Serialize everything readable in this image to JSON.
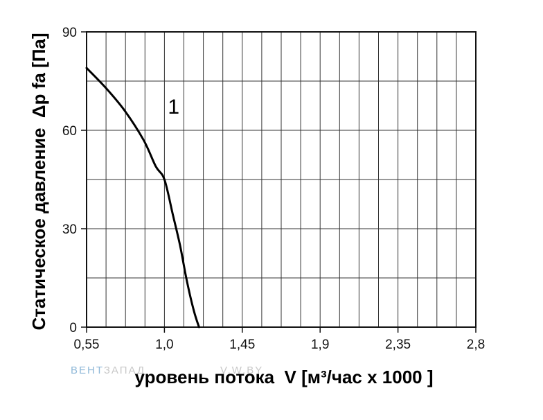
{
  "chart_data": {
    "type": "line",
    "title": "",
    "xlabel": "уровень потока  V [м³/час x 1000 ]",
    "ylabel": "Статическое давление  Δp fa [Па]",
    "xlim": [
      0.55,
      2.8
    ],
    "ylim": [
      0,
      90
    ],
    "x_ticks": [
      0.55,
      1.0,
      1.45,
      1.9,
      2.35,
      2.8
    ],
    "x_tick_labels": [
      "0,55",
      "1,0",
      "1,45",
      "1,9",
      "2,35",
      "2,8"
    ],
    "y_ticks": [
      0,
      30,
      60,
      90
    ],
    "y_tick_labels": [
      "0",
      "30",
      "60",
      "90"
    ],
    "x_minor_step": 0.1125,
    "y_minor_step": 15,
    "grid": true,
    "series": [
      {
        "name": "1",
        "color": "#000000",
        "x": [
          0.55,
          0.66,
          0.77,
          0.88,
          0.95,
          1.0,
          1.05,
          1.09,
          1.13,
          1.17,
          1.2
        ],
        "y": [
          79,
          73,
          66,
          57,
          49,
          45,
          34,
          25,
          14,
          5,
          0
        ]
      }
    ]
  },
  "watermark": {
    "brand_part1": "ВЕНТ",
    "brand_part2": "ЗАПАД",
    "domain": "V.W.BY",
    "color_part1": "#8fb8d8",
    "color_part2": "#c8c8c8"
  }
}
